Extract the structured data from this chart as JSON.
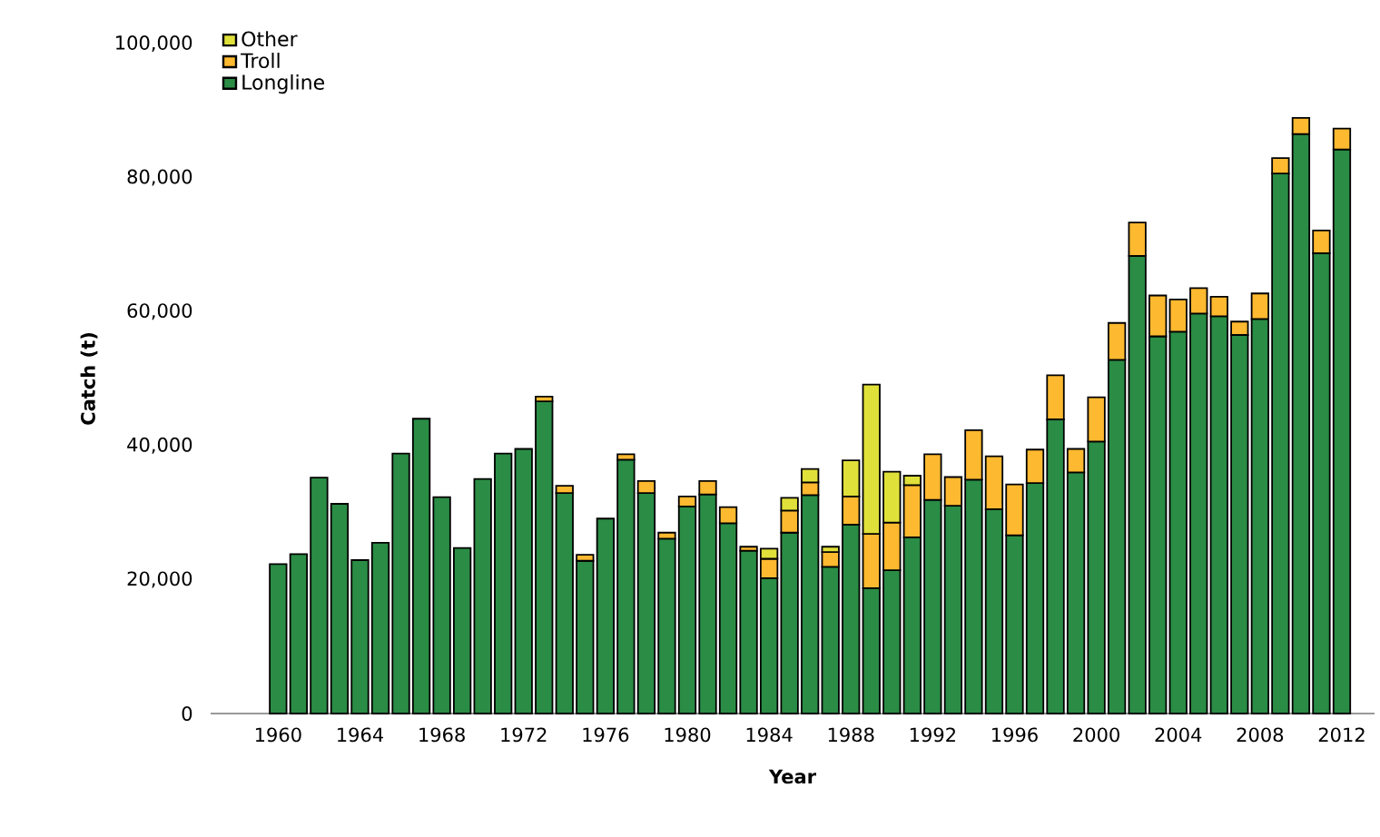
{
  "chart_data": {
    "type": "bar",
    "stacked": true,
    "xlabel": "Year",
    "ylabel": "Catch (t)",
    "x": [
      1960,
      1961,
      1962,
      1963,
      1964,
      1965,
      1966,
      1967,
      1968,
      1969,
      1970,
      1971,
      1972,
      1973,
      1974,
      1975,
      1976,
      1977,
      1978,
      1979,
      1980,
      1981,
      1982,
      1983,
      1984,
      1985,
      1986,
      1987,
      1988,
      1989,
      1990,
      1991,
      1992,
      1993,
      1994,
      1995,
      1996,
      1997,
      1998,
      1999,
      2000,
      2001,
      2002,
      2003,
      2004,
      2005,
      2006,
      2007,
      2008,
      2009,
      2010,
      2011,
      2012
    ],
    "series": [
      {
        "name": "Longline",
        "color": "#2a8c45",
        "values": [
          22300,
          23800,
          35200,
          31300,
          22900,
          25500,
          38800,
          44000,
          32300,
          24700,
          35000,
          38800,
          39500,
          46600,
          32900,
          22800,
          29100,
          37900,
          32900,
          26100,
          30900,
          32700,
          28400,
          24300,
          20200,
          27000,
          32600,
          21900,
          28200,
          18700,
          21400,
          26300,
          31900,
          31000,
          34900,
          30500,
          26600,
          34400,
          43900,
          36000,
          40600,
          52800,
          68300,
          56300,
          57000,
          59700,
          59300,
          56500,
          58900,
          80600,
          86500,
          68700,
          84200
        ]
      },
      {
        "name": "Troll",
        "color": "#fdb92f",
        "values": [
          null,
          null,
          null,
          null,
          null,
          null,
          null,
          null,
          null,
          null,
          null,
          null,
          null,
          700,
          1100,
          900,
          null,
          800,
          1800,
          900,
          1500,
          2000,
          2400,
          600,
          2900,
          3300,
          1900,
          2200,
          4200,
          8100,
          7100,
          7800,
          6800,
          4300,
          7400,
          7900,
          7600,
          5000,
          6600,
          3500,
          6600,
          5500,
          5000,
          6100,
          4800,
          3800,
          2900,
          2000,
          3800,
          2300,
          2400,
          3400,
          3100
        ]
      },
      {
        "name": "Other",
        "color": "#e0e03a",
        "values": [
          null,
          null,
          null,
          null,
          null,
          null,
          null,
          null,
          null,
          null,
          null,
          null,
          null,
          null,
          null,
          null,
          null,
          null,
          null,
          null,
          null,
          null,
          null,
          null,
          1500,
          1900,
          2000,
          800,
          5400,
          22300,
          7600,
          1400,
          null,
          null,
          null,
          null,
          null,
          null,
          null,
          null,
          null,
          null,
          null,
          null,
          null,
          null,
          null,
          null,
          null,
          null,
          null,
          null,
          null
        ]
      }
    ],
    "xlim": [
      1956.7,
      2013.6
    ],
    "ylim": [
      0,
      100000
    ],
    "xticks": [
      1960,
      1964,
      1968,
      1972,
      1976,
      1980,
      1984,
      1988,
      1992,
      1996,
      2000,
      2004,
      2008,
      2012
    ],
    "yticks": [
      {
        "value": 0,
        "label": "0"
      },
      {
        "value": 20000,
        "label": "20,000"
      },
      {
        "value": 40000,
        "label": "40,000"
      },
      {
        "value": 60000,
        "label": "60,000"
      },
      {
        "value": 80000,
        "label": "80,000"
      },
      {
        "value": 100000,
        "label": "100,000"
      }
    ],
    "legend": "top left",
    "grid": false
  }
}
